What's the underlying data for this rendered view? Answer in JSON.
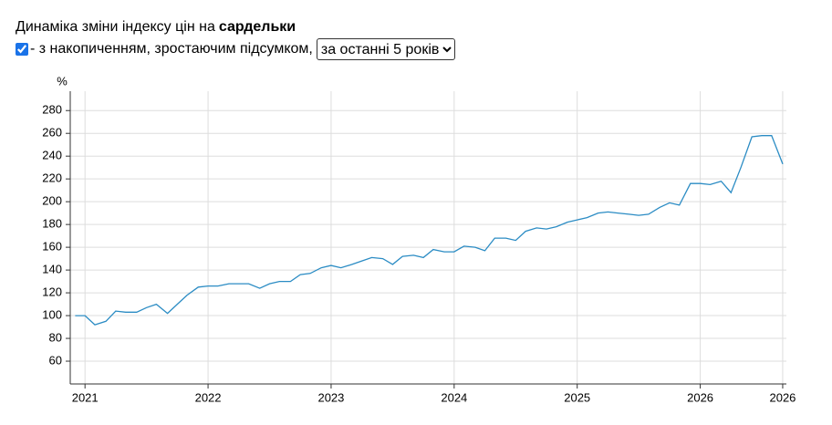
{
  "header": {
    "title": "Динаміка зміни індексу цін на",
    "product": "сардельки",
    "checkbox_label": "- з накопиченням, зростаючим підсумком,",
    "period": "за останні 5 років"
  },
  "chart_data": {
    "type": "line",
    "y_label": "%",
    "x": [
      2020.92,
      2021,
      2021.08,
      2021.17,
      2021.25,
      2021.33,
      2021.42,
      2021.5,
      2021.58,
      2021.67,
      2021.75,
      2021.83,
      2021.92,
      2022,
      2022.08,
      2022.17,
      2022.25,
      2022.33,
      2022.42,
      2022.5,
      2022.58,
      2022.67,
      2022.75,
      2022.83,
      2022.92,
      2023,
      2023.08,
      2023.17,
      2023.25,
      2023.33,
      2023.42,
      2023.5,
      2023.58,
      2023.67,
      2023.75,
      2023.83,
      2023.92,
      2024,
      2024.08,
      2024.17,
      2024.25,
      2024.33,
      2024.42,
      2024.5,
      2024.58,
      2024.67,
      2024.75,
      2024.83,
      2024.92,
      2025,
      2025.08,
      2025.17,
      2025.25,
      2025.33,
      2025.42,
      2025.5,
      2025.58,
      2025.67,
      2025.75,
      2025.83,
      2025.92,
      2026,
      2026.08,
      2026.17,
      2026.25,
      2026.33,
      2026.42,
      2026.5,
      2026.58,
      2026.67
    ],
    "series": [
      {
        "color": "#2b8cc4",
        "values": [
          100,
          100,
          92,
          95,
          104,
          103,
          103,
          107,
          110,
          102,
          110,
          118,
          125,
          126,
          126,
          128,
          128,
          128,
          124,
          128,
          130,
          130,
          136,
          137,
          142,
          144,
          142,
          145,
          148,
          151,
          150,
          145,
          152,
          153,
          151,
          158,
          156,
          156,
          161,
          160,
          157,
          168,
          168,
          166,
          174,
          177,
          176,
          178,
          182,
          184,
          186,
          190,
          191,
          190,
          189,
          188,
          189,
          195,
          199,
          197,
          216,
          216,
          215,
          218,
          208,
          230,
          257,
          258,
          258,
          233
        ]
      }
    ],
    "xlim": [
      2020.88,
      2026.7
    ],
    "xticks": [
      2021,
      2022,
      2023,
      2024,
      2025,
      2026,
      {
        "value": 2026.67,
        "label": "2026"
      }
    ],
    "ylim": [
      40,
      297
    ],
    "yticks": [
      60,
      80,
      100,
      120,
      140,
      160,
      180,
      200,
      220,
      240,
      260,
      280
    ],
    "grid": true
  }
}
